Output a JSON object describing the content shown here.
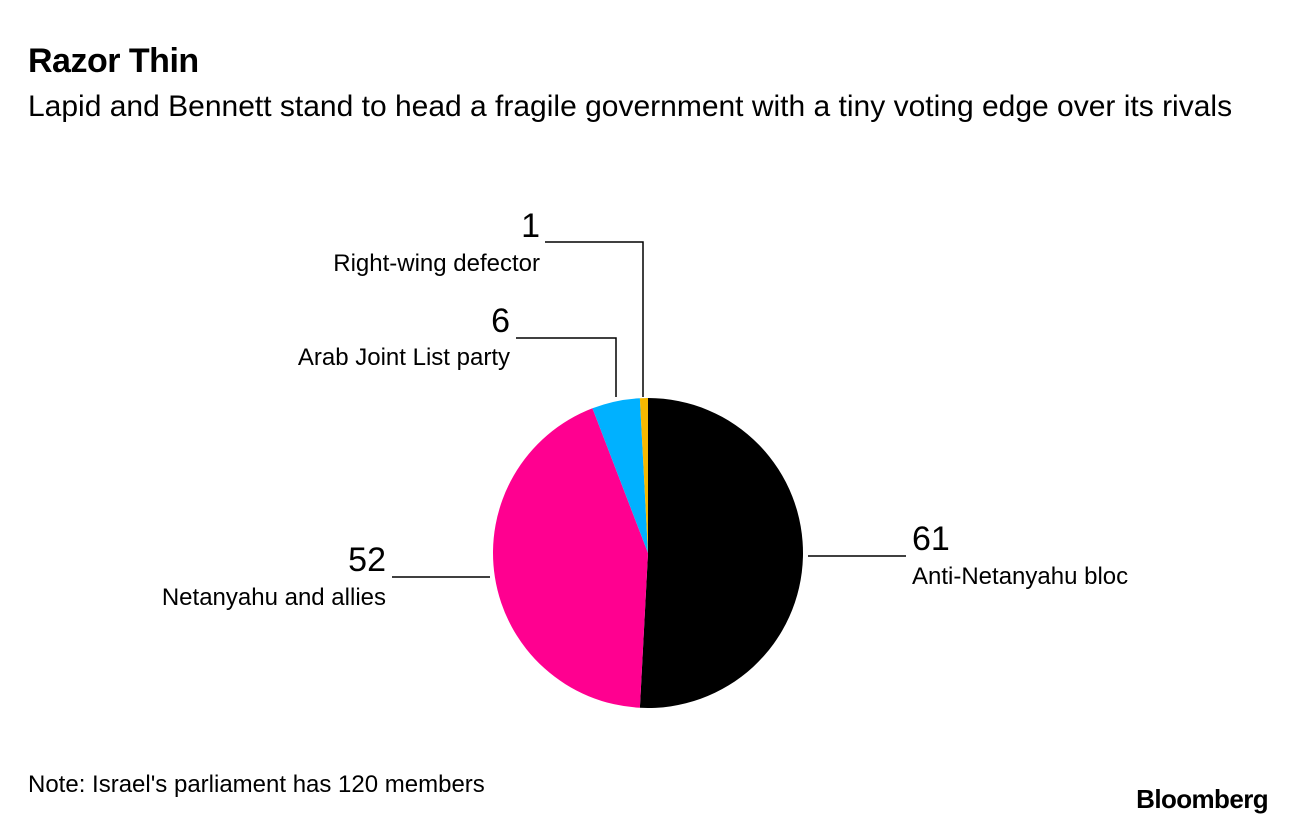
{
  "header": {
    "title": "Razor Thin",
    "subtitle": "Lapid and Bennett stand to head a fragile government with a tiny voting edge over its rivals"
  },
  "footer": {
    "note": "Note: Israel's parliament has 120 members",
    "source_logo": "Bloomberg"
  },
  "chart_data": {
    "type": "pie",
    "total": 120,
    "slices": [
      {
        "label": "Anti-Netanyahu bloc",
        "value": 61,
        "color": "#000000"
      },
      {
        "label": "Netanyahu and allies",
        "value": 52,
        "color": "#ff0090"
      },
      {
        "label": "Arab Joint List party",
        "value": 6,
        "color": "#00b1ff"
      },
      {
        "label": "Right-wing defector",
        "value": 1,
        "color": "#f5b800"
      }
    ]
  }
}
